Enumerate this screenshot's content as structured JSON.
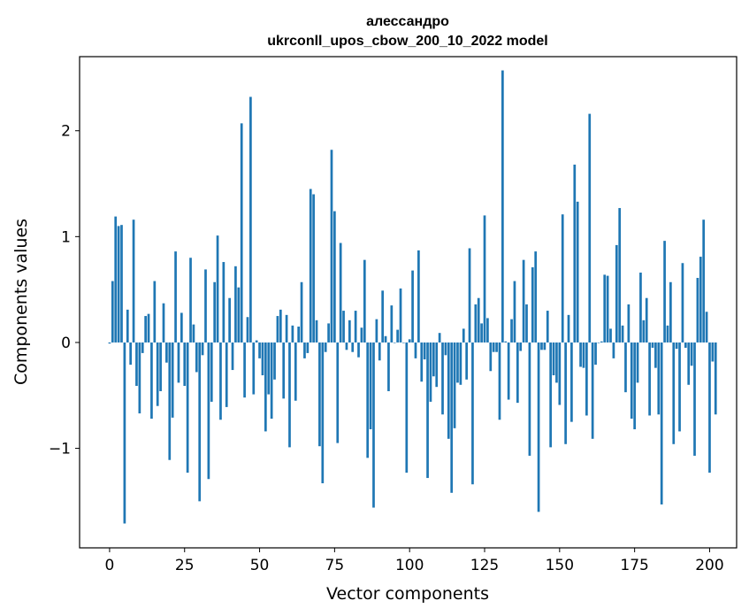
{
  "chart_data": {
    "type": "bar",
    "title_line1": "алессандро",
    "title_line2": "ukrconll_upos_cbow_200_10_2022 model",
    "xlabel": "Vector components",
    "ylabel": "Components values",
    "xlim": [
      -10,
      209
    ],
    "ylim": [
      -1.94,
      2.7
    ],
    "xticks": [
      0,
      25,
      50,
      75,
      100,
      125,
      150,
      175,
      200
    ],
    "yticks": [
      -1,
      0,
      1,
      2
    ],
    "ytick_labels": [
      "−1",
      "0",
      "1",
      "2"
    ],
    "bar_color": "#1f77b4",
    "grid": false,
    "values": [
      -0.01,
      0.58,
      1.19,
      1.1,
      1.11,
      -1.71,
      0.31,
      -0.21,
      1.16,
      -0.41,
      -0.67,
      -0.1,
      0.25,
      0.27,
      -0.72,
      0.58,
      -0.6,
      -0.46,
      0.37,
      -0.19,
      -1.11,
      -0.71,
      0.86,
      -0.38,
      0.28,
      -0.41,
      -1.23,
      0.8,
      0.17,
      -0.28,
      -1.5,
      -0.12,
      0.69,
      -1.29,
      -0.56,
      0.57,
      1.01,
      -0.73,
      0.76,
      -0.61,
      0.42,
      -0.26,
      0.72,
      0.52,
      2.07,
      -0.52,
      0.24,
      2.32,
      -0.49,
      0.02,
      -0.15,
      -0.31,
      -0.84,
      -0.49,
      -0.72,
      -0.35,
      0.25,
      0.31,
      -0.53,
      0.26,
      -0.99,
      0.16,
      -0.55,
      0.15,
      0.57,
      -0.15,
      -0.1,
      1.45,
      1.4,
      0.21,
      -0.98,
      -1.33,
      -0.09,
      0.18,
      1.82,
      1.24,
      -0.95,
      0.94,
      0.3,
      -0.07,
      0.21,
      -0.09,
      0.3,
      -0.14,
      0.14,
      0.78,
      -1.09,
      -0.82,
      -1.56,
      0.22,
      -0.17,
      0.49,
      0.06,
      -0.46,
      0.35,
      0.0,
      0.12,
      0.51,
      0.0,
      -1.23,
      0.03,
      0.68,
      -0.15,
      0.87,
      -0.37,
      -0.16,
      -1.28,
      -0.56,
      -0.32,
      -0.42,
      0.09,
      -0.68,
      -0.12,
      -0.91,
      -1.42,
      -0.81,
      -0.38,
      -0.4,
      0.13,
      -0.35,
      0.89,
      -1.34,
      0.36,
      0.42,
      0.18,
      1.2,
      0.23,
      -0.27,
      -0.09,
      -0.09,
      -0.73,
      2.57,
      0.01,
      -0.54,
      0.22,
      0.58,
      -0.57,
      -0.08,
      0.78,
      0.36,
      -1.07,
      0.71,
      0.86,
      -1.6,
      -0.07,
      -0.07,
      0.3,
      -0.99,
      -0.31,
      -0.38,
      -0.59,
      1.21,
      -0.96,
      0.26,
      -0.75,
      1.68,
      1.33,
      -0.23,
      -0.24,
      -0.69,
      2.16,
      -0.91,
      -0.21,
      0.0,
      0.01,
      0.64,
      0.63,
      0.13,
      -0.15,
      0.92,
      1.27,
      0.16,
      -0.47,
      0.36,
      -0.72,
      -0.82,
      -0.38,
      0.66,
      0.21,
      0.42,
      -0.69,
      -0.05,
      -0.24,
      -0.68,
      -1.53,
      0.96,
      0.16,
      0.57,
      -0.96,
      -0.06,
      -0.84,
      0.75,
      -0.05,
      -0.4,
      -0.22,
      -1.07,
      0.61,
      0.81,
      1.16,
      0.29,
      -1.23,
      -0.18,
      -0.68
    ]
  }
}
